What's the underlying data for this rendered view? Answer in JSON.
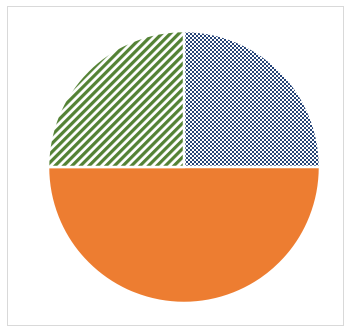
{
  "chart_data": {
    "type": "pie",
    "title": "",
    "slices": [
      {
        "value": 25,
        "color": "#264478",
        "pattern": "dotted-checker"
      },
      {
        "value": 50,
        "color": "#ed7d31",
        "pattern": "solid"
      },
      {
        "value": 25,
        "color": "#548235",
        "pattern": "diagonal-stripes"
      }
    ],
    "start": "top",
    "direction": "clockwise",
    "legend": "none"
  }
}
